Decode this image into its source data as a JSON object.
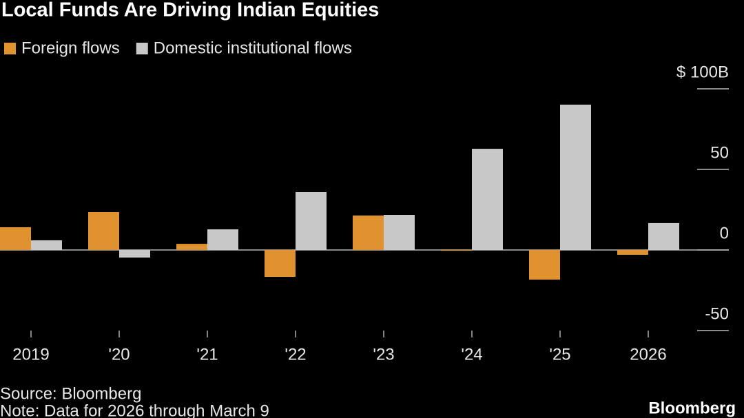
{
  "chart_data": {
    "type": "bar",
    "title": "Local Funds Are Driving Indian Equities",
    "categories": [
      "2019",
      "'20",
      "'21",
      "'22",
      "'23",
      "'24",
      "'25",
      "2026"
    ],
    "series": [
      {
        "name": "Foreign flows",
        "color": "#e0922f",
        "values": [
          14.1,
          23.5,
          3.8,
          -16.7,
          21.4,
          -0.5,
          -18.4,
          -3.0
        ]
      },
      {
        "name": "Domestic institutional flows",
        "color": "#c8c8c8",
        "values": [
          6.0,
          -4.7,
          12.8,
          35.9,
          21.8,
          62.8,
          90.2,
          16.7
        ]
      }
    ],
    "ylim": [
      -50,
      100
    ],
    "yticks": [
      -50,
      0,
      50,
      {
        "value": 100,
        "label": "$ 100B"
      }
    ],
    "source": "Source: Bloomberg",
    "note": "Note: Data for 2026 through March 9",
    "brand": "Bloomberg"
  }
}
